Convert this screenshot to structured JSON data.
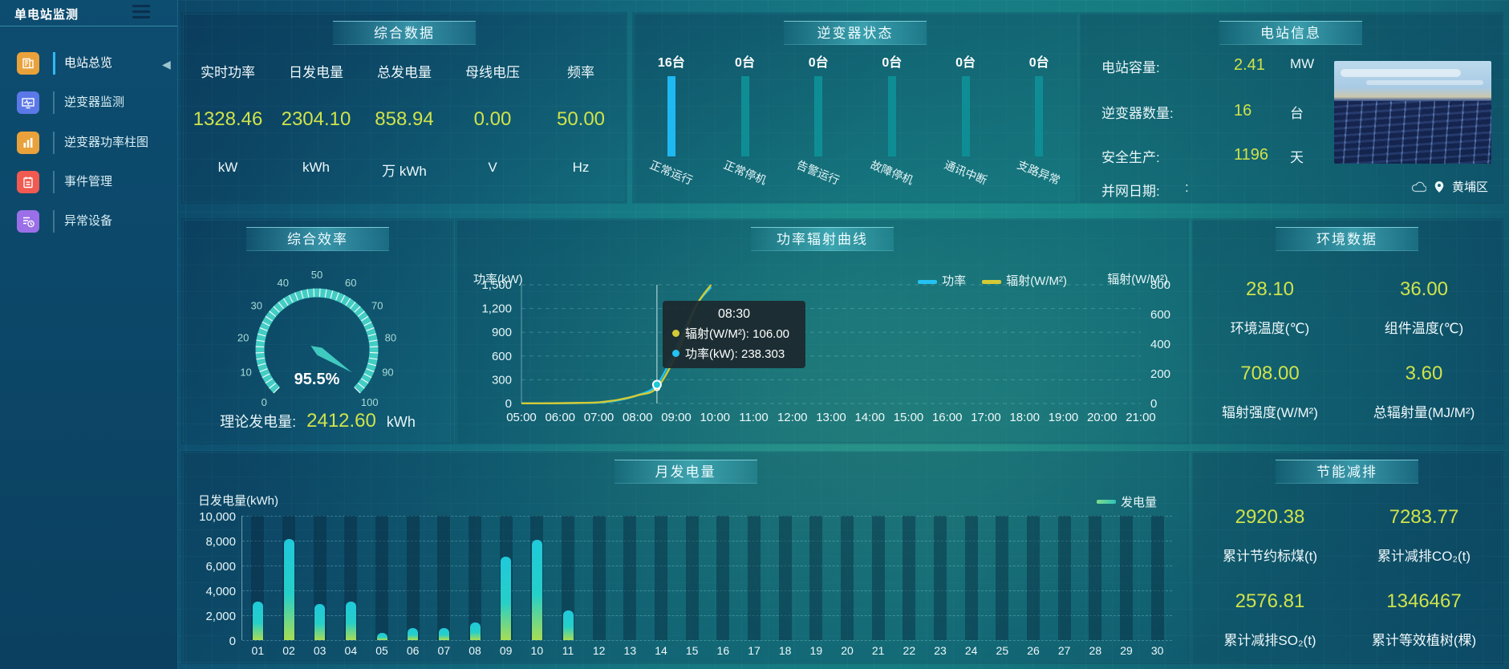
{
  "app": {
    "title": "单电站监测"
  },
  "sidebar": {
    "collapse_glyph": "◀",
    "items": [
      {
        "key": "overview",
        "label": "电站总览",
        "icon": "overview",
        "color": "#e9a23b",
        "active": true
      },
      {
        "key": "inverter",
        "label": "逆变器监测",
        "icon": "monitor",
        "color": "#5b78e8",
        "active": false
      },
      {
        "key": "power-bars",
        "label": "逆变器功率柱图",
        "icon": "barchart",
        "color": "#e9a23b",
        "active": false
      },
      {
        "key": "events",
        "label": "事件管理",
        "icon": "event",
        "color": "#f05a50",
        "active": false
      },
      {
        "key": "abnormal",
        "label": "异常设备",
        "icon": "abnormal",
        "color": "#9b6fe8",
        "active": false
      }
    ]
  },
  "panels": {
    "summary": {
      "title": "综合数据",
      "metrics": [
        {
          "label": "实时功率",
          "value": "1328.46",
          "unit": "kW"
        },
        {
          "label": "日发电量",
          "value": "2304.10",
          "unit": "kWh"
        },
        {
          "label": "总发电量",
          "value": "858.94",
          "unit": "万 kWh"
        },
        {
          "label": "母线电压",
          "value": "0.00",
          "unit": "V"
        },
        {
          "label": "频率",
          "value": "50.00",
          "unit": "Hz"
        }
      ]
    },
    "inverter_status": {
      "title": "逆变器状态"
    },
    "station_info": {
      "title": "电站信息",
      "rows": [
        {
          "label": "电站容量:",
          "value": "2.41",
          "unit": "MW"
        },
        {
          "label": "逆变器数量:",
          "value": "16",
          "unit": "台"
        },
        {
          "label": "安全生产:",
          "value": "1196",
          "unit": "天"
        },
        {
          "label": "并网日期:",
          "value": ":",
          "unit": ""
        }
      ],
      "location": "黄埔区"
    },
    "efficiency": {
      "title": "综合效率",
      "footer_label": "理论发电量:",
      "footer_value": "2412.60",
      "footer_unit": "kWh"
    },
    "power_curve": {
      "title": "功率辐射曲线",
      "tooltip": {
        "time": "08:30",
        "rows": [
          {
            "color": "#d3ca35",
            "text": "辐射(W/M²): 106.00"
          },
          {
            "color": "#23c2f2",
            "text": "功率(kW): 238.303"
          }
        ]
      }
    },
    "environment": {
      "title": "环境数据",
      "cells": [
        {
          "value": "28.10",
          "label": "环境温度(℃)"
        },
        {
          "value": "36.00",
          "label": "组件温度(℃)"
        },
        {
          "value": "708.00",
          "label": "辐射强度(W/M²)"
        },
        {
          "value": "3.60",
          "label": "总辐射量(MJ/M²)"
        }
      ]
    },
    "monthly": {
      "title": "月发电量"
    },
    "saving": {
      "title": "节能减排",
      "cells": [
        {
          "value": "2920.38",
          "label": "累计节约标煤(t)"
        },
        {
          "value": "7283.77",
          "label": "累计减排CO₂(t)"
        },
        {
          "value": "2576.81",
          "label": "累计减排SO₂(t)"
        },
        {
          "value": "1346467",
          "label": "累计等效植树(棵)"
        }
      ]
    }
  },
  "chart_data": [
    {
      "id": "inverter_status",
      "type": "bar",
      "categories": [
        "正常运行",
        "正常停机",
        "告警运行",
        "故障停机",
        "通讯中断",
        "支路异常"
      ],
      "values": [
        16,
        0,
        0,
        0,
        0,
        0
      ],
      "labels": [
        "16台",
        "0台",
        "0台",
        "0台",
        "0台",
        "0台"
      ],
      "bar_colors": [
        "#1fb9f2",
        "#0e8e94",
        "#0e8e94",
        "#0e8e94",
        "#0e8e94",
        "#0e8e94"
      ]
    },
    {
      "id": "efficiency_gauge",
      "type": "gauge",
      "value": 95.5,
      "display": "95.5%",
      "min": 0,
      "max": 100,
      "tick_step": 10,
      "ring_color": "#43cdc4"
    },
    {
      "id": "power_radiation",
      "type": "line",
      "x_ticks": [
        "05:00",
        "06:00",
        "07:00",
        "08:00",
        "09:00",
        "10:00",
        "11:00",
        "12:00",
        "13:00",
        "14:00",
        "15:00",
        "16:00",
        "17:00",
        "18:00",
        "19:00",
        "20:00",
        "21:00"
      ],
      "y_left": {
        "label": "功率(kW)",
        "ticks": [
          "1,500",
          "1,200",
          "900",
          "600",
          "300",
          "0"
        ],
        "max": 1500
      },
      "y_right": {
        "label": "辐射(W/M²)",
        "ticks": [
          "800",
          "600",
          "400",
          "200",
          "0"
        ],
        "max": 800
      },
      "legend_position": "top-right",
      "grid": true,
      "series": [
        {
          "name": "功率",
          "color": "#23c2f2",
          "axis": "left",
          "points": [
            [
              "05:00",
              2
            ],
            [
              "05:30",
              2
            ],
            [
              "06:00",
              3
            ],
            [
              "06:30",
              6
            ],
            [
              "07:00",
              12
            ],
            [
              "07:30",
              40
            ],
            [
              "08:00",
              105
            ],
            [
              "08:30",
              238.303
            ],
            [
              "09:00",
              700
            ],
            [
              "09:30",
              1230
            ],
            [
              "09:54",
              1470
            ]
          ]
        },
        {
          "name": "辐射(W/M²)",
          "color": "#d3ca35",
          "axis": "right",
          "points": [
            [
              "05:00",
              1
            ],
            [
              "05:30",
              1
            ],
            [
              "06:00",
              2
            ],
            [
              "06:30",
              4
            ],
            [
              "07:00",
              8
            ],
            [
              "07:30",
              25
            ],
            [
              "08:00",
              55
            ],
            [
              "08:30",
              106
            ],
            [
              "09:00",
              330
            ],
            [
              "09:30",
              650
            ],
            [
              "09:54",
              800
            ]
          ]
        }
      ],
      "pointer": {
        "time": "08:30",
        "power": 238.303,
        "radiation": 106
      }
    },
    {
      "id": "monthly_generation",
      "type": "bar",
      "title": "月发电量",
      "ylabel": "日发电量(kWh)",
      "legend": "发电量",
      "ylim": [
        0,
        10000
      ],
      "y_ticks": [
        "10,000",
        "8,000",
        "6,000",
        "4,000",
        "2,000",
        "0"
      ],
      "categories": [
        "01",
        "02",
        "03",
        "04",
        "05",
        "06",
        "07",
        "08",
        "09",
        "10",
        "11",
        "12",
        "13",
        "14",
        "15",
        "16",
        "17",
        "18",
        "19",
        "20",
        "21",
        "22",
        "23",
        "24",
        "25",
        "26",
        "27",
        "28",
        "29",
        "30"
      ],
      "values": [
        3100,
        8100,
        2900,
        3100,
        550,
        1000,
        950,
        1400,
        6700,
        8050,
        2400,
        0,
        0,
        0,
        0,
        0,
        0,
        0,
        0,
        0,
        0,
        0,
        0,
        0,
        0,
        0,
        0,
        0,
        0,
        0
      ]
    }
  ]
}
